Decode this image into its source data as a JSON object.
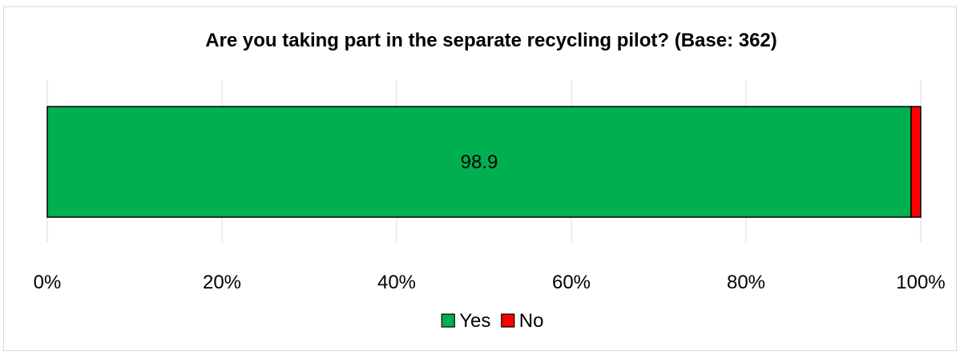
{
  "chart_data": {
    "type": "bar",
    "orientation": "horizontal",
    "stacked": true,
    "title": "Are you taking part in the separate recycling pilot? (Base: 362)",
    "xlabel": "",
    "ylabel": "",
    "xlim": [
      0,
      100
    ],
    "x_ticks": [
      "0%",
      "20%",
      "40%",
      "60%",
      "80%",
      "100%"
    ],
    "grid": "vertical",
    "legend_position": "bottom",
    "series": [
      {
        "name": "Yes",
        "values": [
          98.9
        ],
        "color": "#00b050",
        "data_label": "98.9"
      },
      {
        "name": "No",
        "values": [
          1.1
        ],
        "color": "#ff0000",
        "data_label": ""
      }
    ]
  }
}
